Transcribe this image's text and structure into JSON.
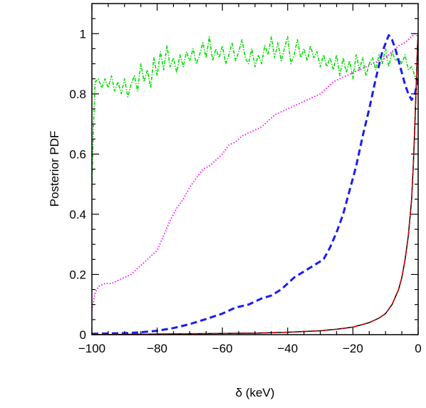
{
  "chart_data": {
    "type": "line",
    "xlabel": "δ (keV)",
    "ylabel": "Posterior PDF",
    "xlim": [
      -100,
      0
    ],
    "ylim": [
      0,
      1.1
    ],
    "grid": false,
    "legend": "none",
    "xticks": [
      -100,
      -80,
      -60,
      -40,
      -20,
      0
    ],
    "xtick_labels": [
      "−100",
      "−80",
      "−60",
      "−40",
      "−20",
      "0"
    ],
    "yticks": [
      0,
      0.2,
      0.4,
      0.6,
      0.8,
      1
    ],
    "ytick_labels": [
      "0",
      "0.2",
      "0.4",
      "0.6",
      "0.8",
      "1"
    ],
    "series": [
      {
        "color": "#00dd00",
        "style": "dash-dot",
        "x": [
          -100,
          -99.5,
          -99,
          -98,
          -97,
          -96,
          -95,
          -94,
          -93,
          -92,
          -91,
          -90,
          -89,
          -88,
          -87,
          -86,
          -85,
          -84,
          -83,
          -82,
          -81,
          -80,
          -79,
          -78,
          -77,
          -76,
          -75,
          -74,
          -73,
          -72,
          -71,
          -70,
          -69,
          -68,
          -67,
          -66,
          -65,
          -64,
          -63,
          -62,
          -61,
          -60,
          -59,
          -58,
          -57,
          -56,
          -55,
          -54,
          -53,
          -52,
          -51,
          -50,
          -49,
          -48,
          -47,
          -46,
          -45,
          -44,
          -43,
          -42,
          -41,
          -40,
          -39,
          -38,
          -37,
          -36,
          -35,
          -34,
          -33,
          -32,
          -31,
          -30,
          -29,
          -28,
          -27,
          -26,
          -25,
          -24,
          -23,
          -22,
          -21,
          -20,
          -19,
          -18,
          -17,
          -16,
          -15,
          -14,
          -13,
          -12,
          -11,
          -10,
          -9,
          -8,
          -7,
          -6,
          -5,
          -4,
          -3,
          -2,
          -1,
          0
        ],
        "y": [
          0.49,
          0.7,
          0.84,
          0.85,
          0.82,
          0.85,
          0.82,
          0.86,
          0.81,
          0.84,
          0.8,
          0.85,
          0.79,
          0.83,
          0.86,
          0.81,
          0.9,
          0.84,
          0.88,
          0.82,
          0.92,
          0.86,
          0.94,
          0.88,
          0.96,
          0.89,
          0.92,
          0.87,
          0.93,
          0.89,
          0.94,
          0.91,
          0.95,
          0.9,
          0.93,
          0.97,
          0.92,
          0.99,
          0.91,
          0.95,
          0.92,
          0.96,
          0.9,
          0.93,
          0.97,
          0.91,
          0.94,
          0.98,
          0.92,
          0.9,
          0.95,
          0.89,
          0.93,
          0.9,
          0.96,
          0.93,
          0.99,
          0.92,
          0.97,
          0.91,
          0.95,
          0.99,
          0.9,
          0.93,
          0.98,
          0.92,
          0.95,
          0.91,
          0.96,
          0.92,
          0.94,
          0.89,
          0.93,
          0.89,
          0.92,
          0.88,
          0.93,
          0.86,
          0.92,
          0.87,
          0.91,
          0.85,
          0.93,
          0.88,
          0.92,
          0.86,
          0.9,
          0.92,
          0.88,
          0.93,
          0.9,
          0.95,
          0.89,
          0.94,
          0.91,
          0.92,
          0.9,
          0.93,
          0.88,
          0.89,
          0.86,
          0.84
        ]
      },
      {
        "color": "#ff00ff",
        "style": "dotted",
        "x": [
          -100,
          -99,
          -98,
          -96,
          -94,
          -92,
          -90,
          -88,
          -86,
          -84,
          -82,
          -80,
          -78,
          -76,
          -74,
          -72,
          -70,
          -68,
          -66,
          -64,
          -62,
          -60,
          -58,
          -56,
          -54,
          -52,
          -50,
          -48,
          -46,
          -44,
          -42,
          -40,
          -38,
          -36,
          -34,
          -32,
          -30,
          -28,
          -26,
          -24,
          -22,
          -20,
          -18,
          -16,
          -14,
          -12,
          -10,
          -8,
          -6,
          -4,
          -2,
          -1,
          0
        ],
        "y": [
          0.08,
          0.14,
          0.16,
          0.17,
          0.17,
          0.18,
          0.19,
          0.2,
          0.22,
          0.24,
          0.26,
          0.28,
          0.33,
          0.38,
          0.42,
          0.45,
          0.49,
          0.52,
          0.55,
          0.56,
          0.58,
          0.6,
          0.63,
          0.64,
          0.66,
          0.67,
          0.68,
          0.69,
          0.71,
          0.73,
          0.74,
          0.75,
          0.76,
          0.77,
          0.78,
          0.79,
          0.8,
          0.82,
          0.84,
          0.85,
          0.86,
          0.87,
          0.88,
          0.89,
          0.9,
          0.91,
          0.92,
          0.94,
          0.96,
          0.97,
          0.99,
          1.0,
          0.99
        ]
      },
      {
        "color": "#1c1cf0",
        "style": "dashed",
        "x": [
          -100,
          -95,
          -90,
          -85,
          -80,
          -75,
          -70,
          -65,
          -60,
          -56,
          -52,
          -50,
          -48,
          -45,
          -42,
          -40,
          -38,
          -35,
          -32,
          -29,
          -27,
          -25,
          -23,
          -21,
          -19,
          -17,
          -15,
          -13,
          -11,
          -9,
          -8,
          -7,
          -6,
          -5,
          -4,
          -3,
          -2,
          -1,
          0
        ],
        "y": [
          0.003,
          0.004,
          0.005,
          0.008,
          0.013,
          0.022,
          0.035,
          0.052,
          0.07,
          0.09,
          0.1,
          0.11,
          0.12,
          0.13,
          0.15,
          0.17,
          0.19,
          0.21,
          0.23,
          0.25,
          0.29,
          0.34,
          0.4,
          0.48,
          0.56,
          0.66,
          0.75,
          0.85,
          0.94,
          0.995,
          0.98,
          0.95,
          0.91,
          0.87,
          0.83,
          0.8,
          0.78,
          0.8,
          0.85
        ]
      },
      {
        "color": "#000000",
        "style": "solid",
        "x": [
          -100,
          -80,
          -60,
          -50,
          -40,
          -30,
          -25,
          -20,
          -15,
          -12,
          -10,
          -8,
          -6,
          -5,
          -4,
          -3,
          -2,
          -1.5,
          -1,
          -0.5,
          -0.2,
          0
        ],
        "y": [
          0.0,
          0.002,
          0.004,
          0.005,
          0.008,
          0.013,
          0.018,
          0.025,
          0.04,
          0.055,
          0.07,
          0.1,
          0.15,
          0.19,
          0.25,
          0.33,
          0.45,
          0.56,
          0.7,
          0.86,
          0.96,
          1.0
        ]
      },
      {
        "color": "#cc0000",
        "style": "dashed",
        "x": [
          -100,
          -80,
          -60,
          -50,
          -40,
          -30,
          -25,
          -20,
          -15,
          -12,
          -10,
          -8,
          -6,
          -5,
          -4,
          -3,
          -2,
          -1.5,
          -1,
          -0.5,
          -0.2,
          0
        ],
        "y": [
          0.0,
          0.002,
          0.004,
          0.005,
          0.008,
          0.013,
          0.018,
          0.025,
          0.04,
          0.055,
          0.07,
          0.1,
          0.15,
          0.19,
          0.25,
          0.33,
          0.45,
          0.56,
          0.7,
          0.86,
          0.96,
          1.0
        ]
      }
    ]
  }
}
